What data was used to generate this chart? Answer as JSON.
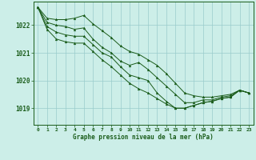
{
  "title": "Graphe pression niveau de la mer (hPa)",
  "background_color": "#cceee8",
  "grid_color": "#99cccc",
  "line_color": "#1a5c1a",
  "marker_color": "#1a5c1a",
  "xlim": [
    -0.5,
    23.5
  ],
  "ylim": [
    1018.4,
    1022.85
  ],
  "yticks": [
    1019,
    1020,
    1021,
    1022
  ],
  "xticks": [
    0,
    1,
    2,
    3,
    4,
    5,
    6,
    7,
    8,
    9,
    10,
    11,
    12,
    13,
    14,
    15,
    16,
    17,
    18,
    19,
    20,
    21,
    22,
    23
  ],
  "series": [
    [
      1022.65,
      1022.25,
      1022.2,
      1022.2,
      1022.25,
      1022.35,
      1022.05,
      1021.8,
      1021.55,
      1021.25,
      1021.05,
      1020.95,
      1020.75,
      1020.55,
      1020.25,
      1019.9,
      1019.55,
      1019.45,
      1019.4,
      1019.4,
      1019.45,
      1019.5,
      1019.65,
      1019.55
    ],
    [
      1022.65,
      1022.1,
      1022.0,
      1021.95,
      1021.85,
      1021.9,
      1021.5,
      1021.2,
      1021.0,
      1020.7,
      1020.55,
      1020.65,
      1020.4,
      1020.1,
      1019.8,
      1019.5,
      1019.2,
      1019.2,
      1019.3,
      1019.3,
      1019.4,
      1019.45,
      1019.65,
      1019.55
    ],
    [
      1022.65,
      1021.95,
      1021.75,
      1021.65,
      1021.6,
      1021.6,
      1021.3,
      1021.0,
      1020.85,
      1020.5,
      1020.2,
      1020.1,
      1020.0,
      1019.55,
      1019.25,
      1019.0,
      1019.0,
      1019.1,
      1019.2,
      1019.25,
      1019.35,
      1019.4,
      1019.65,
      1019.55
    ],
    [
      1022.65,
      1021.85,
      1021.5,
      1021.4,
      1021.35,
      1021.35,
      1021.05,
      1020.75,
      1020.5,
      1020.2,
      1019.9,
      1019.7,
      1019.55,
      1019.35,
      1019.15,
      1019.0,
      1019.0,
      1019.1,
      1019.2,
      1019.25,
      1019.35,
      1019.4,
      1019.65,
      1019.55
    ]
  ]
}
